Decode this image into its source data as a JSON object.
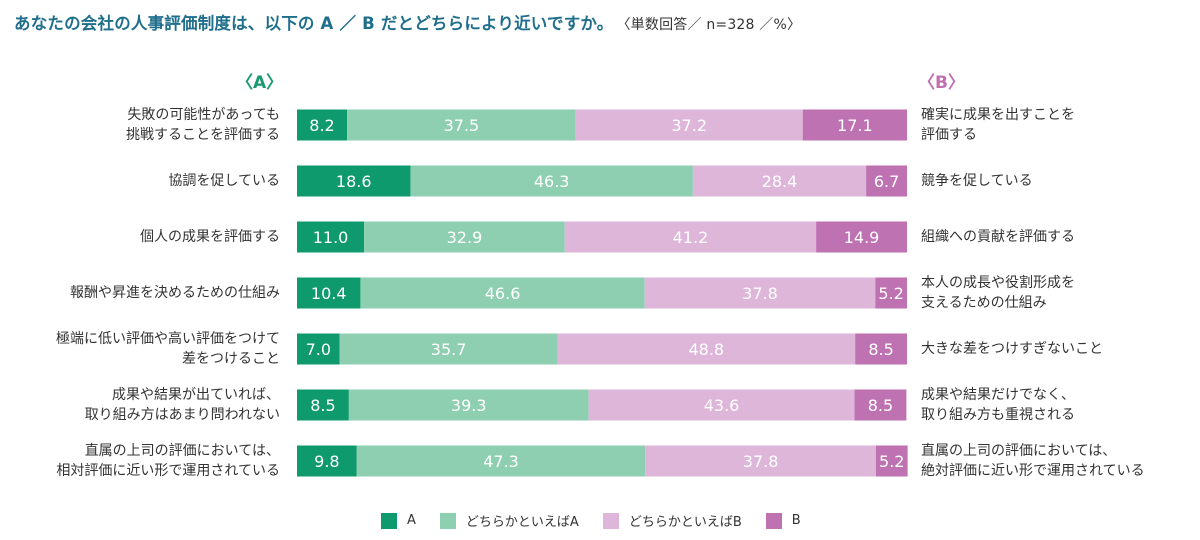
{
  "title": "あなたの会社の人事評価制度は、以下の A ／ B だとどちらにより近いですか。",
  "note": "〈単数回答／ n=328 ／%〉",
  "header_a": "〈A〉",
  "header_b": "〈B〉",
  "colors": {
    "A": "#0e9a6c",
    "leanA": "#8ecfb2",
    "leanB": "#ddb6da",
    "B": "#bf72b2"
  },
  "chart_data": {
    "type": "bar",
    "stacked": true,
    "orientation": "horizontal",
    "xlim": [
      0,
      100
    ],
    "rows": [
      {
        "label_a": "失敗の可能性があっても\n挑戦することを評価する",
        "label_b": "確実に成果を出すことを\n評価する",
        "values": [
          8.2,
          37.5,
          37.2,
          17.1
        ]
      },
      {
        "label_a": "協調を促している",
        "label_b": "競争を促している",
        "values": [
          18.6,
          46.3,
          28.4,
          6.7
        ]
      },
      {
        "label_a": "個人の成果を評価する",
        "label_b": "組織への貢献を評価する",
        "values": [
          11.0,
          32.9,
          41.2,
          14.9
        ]
      },
      {
        "label_a": "報酬や昇進を決めるための仕組み",
        "label_b": "本人の成長や役割形成を\n支えるための仕組み",
        "values": [
          10.4,
          46.6,
          37.8,
          5.2
        ]
      },
      {
        "label_a": "極端に低い評価や高い評価をつけて\n差をつけること",
        "label_b": "大きな差をつけすぎないこと",
        "values": [
          7.0,
          35.7,
          48.8,
          8.5
        ]
      },
      {
        "label_a": "成果や結果が出ていれば、\n取り組み方はあまり問われない",
        "label_b": "成果や結果だけでなく、\n取り組み方も重視される",
        "values": [
          8.5,
          39.3,
          43.6,
          8.5
        ]
      },
      {
        "label_a": "直属の上司の評価においては、\n相対評価に近い形で運用されている",
        "label_b": "直属の上司の評価においては、\n絶対評価に近い形で運用されている",
        "values": [
          9.8,
          47.3,
          37.8,
          5.2
        ]
      }
    ],
    "series": [
      {
        "name": "A",
        "color": "#0e9a6c"
      },
      {
        "name": "どちらかといえばA",
        "color": "#8ecfb2"
      },
      {
        "name": "どちらかといえばB",
        "color": "#ddb6da"
      },
      {
        "name": "B",
        "color": "#bf72b2"
      }
    ]
  }
}
